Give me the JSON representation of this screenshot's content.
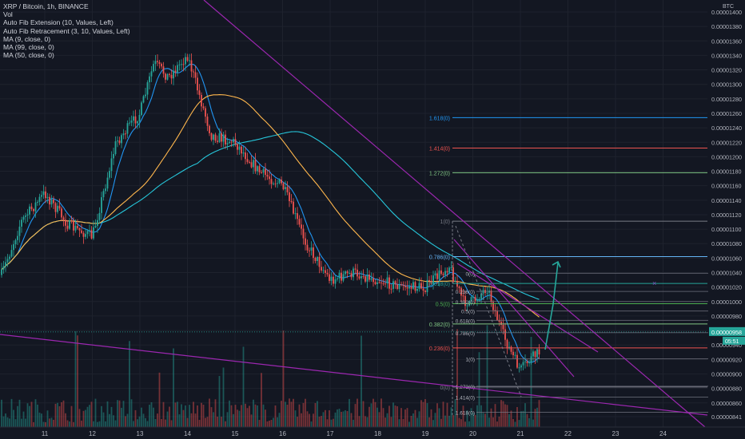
{
  "app": {
    "theme": {
      "background": "#131722",
      "grid": "#1e222d",
      "text": "#b2b5be",
      "up": "#26a69a",
      "down": "#ef5350"
    }
  },
  "legend": {
    "symbol": "XRP / Bitcoin, 1h, BINANCE",
    "lines": [
      "Vol",
      "Auto Fib Extension (10, Values, Left)",
      "Auto Fib Retracement (3, 10, Values, Left)",
      "MA (9, close, 0)",
      "MA (99, close, 0)",
      "MA (50, close, 0)"
    ]
  },
  "price_axis": {
    "unit": "BTC",
    "ticks": [
      "0.00001400",
      "0.00001380",
      "0.00001360",
      "0.00001340",
      "0.00001320",
      "0.00001300",
      "0.00001280",
      "0.00001260",
      "0.00001240",
      "0.00001220",
      "0.00001200",
      "0.00001180",
      "0.00001160",
      "0.00001140",
      "0.00001120",
      "0.00001100",
      "0.00001080",
      "0.00001060",
      "0.00001040",
      "0.00001020",
      "0.00001000",
      "0.00000980",
      "0.00000960",
      "0.00000940",
      "0.00000920",
      "0.00000900",
      "0.00000880",
      "0.00000860",
      "0.00000841"
    ],
    "current_price_label": "0.00000958",
    "countdown_label": "05:51"
  },
  "time_axis": {
    "labels": [
      "11",
      "12",
      "13",
      "14",
      "15",
      "16",
      "17",
      "18",
      "19",
      "20",
      "21",
      "22",
      "23",
      "24"
    ]
  },
  "chart_data": {
    "type": "candlestick",
    "symbol": "XRP / Bitcoin",
    "interval": "1h",
    "exchange": "BINANCE",
    "y_unit": "BTC",
    "ylim": [
      8.38e-06,
      1.405e-05
    ],
    "approx_close_path": {
      "x": [
        "10",
        "10.5",
        "11",
        "11.5",
        "12",
        "12.5",
        "13",
        "13.3",
        "13.6",
        "14",
        "14.5",
        "15",
        "15.5",
        "16",
        "16.5",
        "17",
        "17.5",
        "18",
        "18.5",
        "19",
        "19.5",
        "19.8",
        "20",
        "20.3",
        "20.6",
        "20.8",
        "21",
        "21.2",
        "21.4"
      ],
      "close": [
        1.02e-05,
        1.11e-05,
        1.15e-05,
        1.105e-05,
        1.09e-05,
        1.22e-05,
        1.26e-05,
        1.33e-05,
        1.31e-05,
        1.34e-05,
        1.23e-05,
        1.22e-05,
        1.18e-05,
        1.16e-05,
        1.08e-05,
        1.03e-05,
        1.04e-05,
        1.03e-05,
        1.02e-05,
        1.02e-05,
        1.05e-05,
        1e-05,
        1e-05,
        1.02e-05,
        9.6e-06,
        9.3e-06,
        9.05e-06,
        9.2e-06,
        9.3e-06
      ]
    },
    "moving_averages": [
      {
        "name": "MA (9, close, 0)",
        "color": "#2196f3"
      },
      {
        "name": "MA (99, close, 0)",
        "color": "#26c6da"
      },
      {
        "name": "MA (50, close, 0)",
        "color": "#ffb74d"
      }
    ],
    "fib_extension": {
      "color_map": "Values, Left",
      "levels": [
        {
          "label": "1.618(0)",
          "price": 1.254e-05,
          "color": "#2196f3"
        },
        {
          "label": "1.414(0)",
          "price": 1.212e-05,
          "color": "#ef5350"
        },
        {
          "label": "1.272(0)",
          "price": 1.178e-05,
          "color": "#81c784"
        },
        {
          "label": "1(0)",
          "price": 1.111e-05,
          "color": "#787b86"
        },
        {
          "label": "0.786(0)",
          "price": 1.062e-05,
          "color": "#64b5f6"
        },
        {
          "label": "0.618(0)",
          "price": 1.025e-05,
          "color": "#26a69a"
        },
        {
          "label": "0.5(0)",
          "price": 9.97e-06,
          "color": "#4caf50"
        },
        {
          "label": "0.382(0)",
          "price": 9.69e-06,
          "color": "#81c784"
        },
        {
          "label": "0.236(0)",
          "price": 9.36e-06,
          "color": "#ef5350"
        },
        {
          "label": "0(0)",
          "price": 8.82e-06,
          "color": "#787b86"
        }
      ]
    },
    "fib_retracement": {
      "levels": [
        {
          "label": "0(0)",
          "price": 1.039e-05
        },
        {
          "label": "0.236(0)",
          "price": 1.014e-05
        },
        {
          "label": "0.382(0)",
          "price": 1e-05
        },
        {
          "label": "0.5(0)",
          "price": 9.87e-06
        },
        {
          "label": "0.618(0)",
          "price": 9.74e-06
        },
        {
          "label": "0.786(0)",
          "price": 9.57e-06
        },
        {
          "label": "1(0)",
          "price": 9.21e-06
        },
        {
          "label": "1.272(0)",
          "price": 8.83e-06
        },
        {
          "label": "1.414(0)",
          "price": 8.68e-06
        },
        {
          "label": "1.618(0)",
          "price": 8.47e-06
        }
      ]
    },
    "drawings": [
      "descending trendline (purple)",
      "falling wedge channel (purple)",
      "projected upward arrow (green)",
      "lower trendline (purple)"
    ],
    "current_price": 9.58e-06,
    "grid": true
  }
}
